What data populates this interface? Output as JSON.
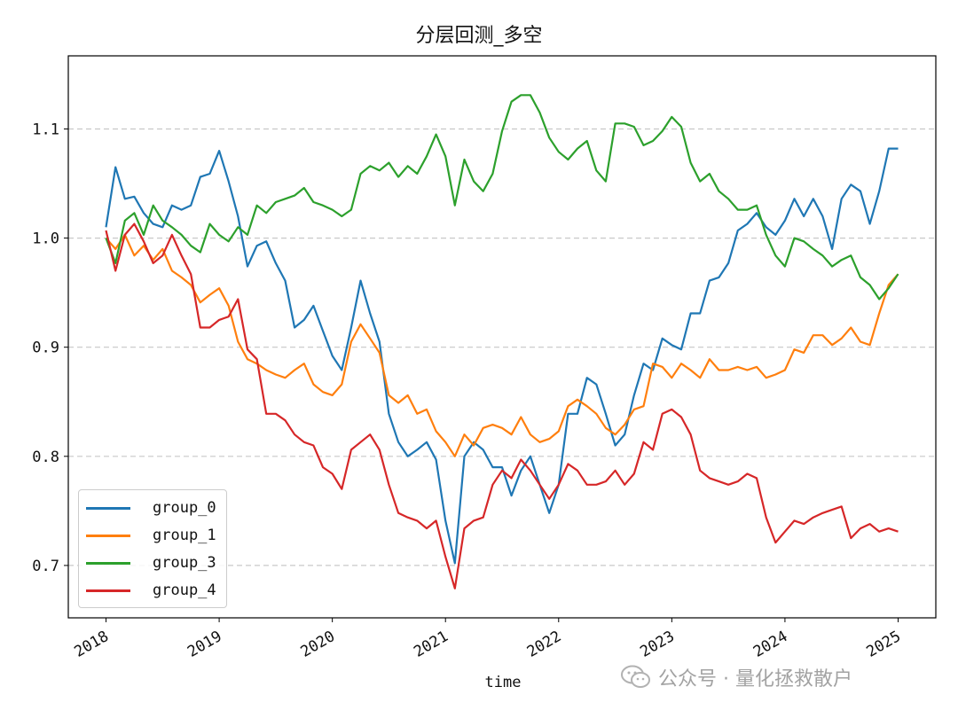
{
  "chart_data": {
    "type": "line",
    "title": "分层回测_多空",
    "xlabel": "time",
    "ylabel": "",
    "ylim": [
      0.652,
      1.167
    ],
    "xlim": [
      "2017-09",
      "2025-05"
    ],
    "grid": {
      "y": true,
      "x": false,
      "style": "dashed"
    },
    "legend_position": "lower-left",
    "y_ticks": [
      "0.7",
      "0.8",
      "0.9",
      "1.0",
      "1.1"
    ],
    "x_ticks": [
      "2018",
      "2019",
      "2020",
      "2021",
      "2022",
      "2023",
      "2024",
      "2025"
    ],
    "x": [
      "2018-01",
      "2018-02",
      "2018-03",
      "2018-04",
      "2018-05",
      "2018-06",
      "2018-07",
      "2018-08",
      "2018-09",
      "2018-10",
      "2018-11",
      "2018-12",
      "2019-01",
      "2019-02",
      "2019-03",
      "2019-04",
      "2019-05",
      "2019-06",
      "2019-07",
      "2019-08",
      "2019-09",
      "2019-10",
      "2019-11",
      "2019-12",
      "2020-01",
      "2020-02",
      "2020-03",
      "2020-04",
      "2020-05",
      "2020-06",
      "2020-07",
      "2020-08",
      "2020-09",
      "2020-10",
      "2020-11",
      "2020-12",
      "2021-01",
      "2021-02",
      "2021-03",
      "2021-04",
      "2021-05",
      "2021-06",
      "2021-07",
      "2021-08",
      "2021-09",
      "2021-10",
      "2021-11",
      "2021-12",
      "2022-01",
      "2022-02",
      "2022-03",
      "2022-04",
      "2022-05",
      "2022-06",
      "2022-07",
      "2022-08",
      "2022-09",
      "2022-10",
      "2022-11",
      "2022-12",
      "2023-01",
      "2023-02",
      "2023-03",
      "2023-04",
      "2023-05",
      "2023-06",
      "2023-07",
      "2023-08",
      "2023-09",
      "2023-10",
      "2023-11",
      "2023-12",
      "2024-01",
      "2024-02",
      "2024-03",
      "2024-04",
      "2024-05",
      "2024-06",
      "2024-07",
      "2024-08",
      "2024-09",
      "2024-10",
      "2024-11",
      "2024-12",
      "2025-01"
    ],
    "series": [
      {
        "name": "group_0",
        "color": "#1f77b4",
        "values": [
          1.01,
          1.065,
          1.036,
          1.038,
          1.023,
          1.013,
          1.01,
          1.03,
          1.026,
          1.03,
          1.056,
          1.059,
          1.08,
          1.052,
          1.02,
          0.974,
          0.993,
          0.997,
          0.977,
          0.961,
          0.918,
          0.925,
          0.938,
          0.915,
          0.892,
          0.879,
          0.918,
          0.961,
          0.931,
          0.905,
          0.839,
          0.813,
          0.8,
          0.806,
          0.813,
          0.797,
          0.741,
          0.702,
          0.8,
          0.813,
          0.806,
          0.79,
          0.79,
          0.764,
          0.787,
          0.8,
          0.774,
          0.748,
          0.774,
          0.839,
          0.839,
          0.872,
          0.866,
          0.839,
          0.81,
          0.82,
          0.856,
          0.885,
          0.879,
          0.908,
          0.902,
          0.898,
          0.931,
          0.931,
          0.961,
          0.964,
          0.977,
          1.007,
          1.013,
          1.023,
          1.01,
          1.003,
          1.016,
          1.036,
          1.02,
          1.036,
          1.02,
          0.99,
          1.036,
          1.049,
          1.043,
          1.013,
          1.043,
          1.082,
          1.082
        ]
      },
      {
        "name": "group_1",
        "color": "#ff7f0e",
        "values": [
          1.0,
          0.99,
          1.003,
          0.984,
          0.993,
          0.98,
          0.99,
          0.97,
          0.964,
          0.957,
          0.941,
          0.948,
          0.954,
          0.938,
          0.905,
          0.889,
          0.885,
          0.879,
          0.875,
          0.872,
          0.879,
          0.885,
          0.866,
          0.859,
          0.856,
          0.866,
          0.905,
          0.921,
          0.908,
          0.895,
          0.856,
          0.849,
          0.856,
          0.839,
          0.843,
          0.823,
          0.813,
          0.8,
          0.82,
          0.81,
          0.826,
          0.829,
          0.826,
          0.82,
          0.836,
          0.82,
          0.813,
          0.816,
          0.823,
          0.846,
          0.852,
          0.846,
          0.839,
          0.826,
          0.82,
          0.829,
          0.843,
          0.846,
          0.885,
          0.882,
          0.872,
          0.885,
          0.879,
          0.872,
          0.889,
          0.879,
          0.879,
          0.882,
          0.879,
          0.882,
          0.872,
          0.875,
          0.879,
          0.898,
          0.895,
          0.911,
          0.911,
          0.902,
          0.908,
          0.918,
          0.905,
          0.902,
          0.931,
          0.957,
          0.967
        ]
      },
      {
        "name": "group_3",
        "color": "#2ca02c",
        "values": [
          1.0,
          0.977,
          1.016,
          1.023,
          1.003,
          1.03,
          1.016,
          1.01,
          1.003,
          0.993,
          0.987,
          1.013,
          1.003,
          0.997,
          1.01,
          1.003,
          1.03,
          1.023,
          1.033,
          1.036,
          1.039,
          1.046,
          1.033,
          1.03,
          1.026,
          1.02,
          1.026,
          1.059,
          1.066,
          1.062,
          1.069,
          1.056,
          1.066,
          1.059,
          1.075,
          1.095,
          1.075,
          1.03,
          1.072,
          1.052,
          1.043,
          1.059,
          1.098,
          1.125,
          1.131,
          1.131,
          1.115,
          1.092,
          1.079,
          1.072,
          1.082,
          1.089,
          1.062,
          1.052,
          1.105,
          1.105,
          1.102,
          1.085,
          1.089,
          1.098,
          1.111,
          1.102,
          1.069,
          1.052,
          1.059,
          1.043,
          1.036,
          1.026,
          1.026,
          1.03,
          1.003,
          0.984,
          0.974,
          1.0,
          0.997,
          0.99,
          0.984,
          0.974,
          0.98,
          0.984,
          0.964,
          0.957,
          0.944,
          0.954,
          0.967
        ]
      },
      {
        "name": "group_4",
        "color": "#d62728",
        "values": [
          1.007,
          0.97,
          1.003,
          1.013,
          0.997,
          0.977,
          0.984,
          1.003,
          0.984,
          0.967,
          0.918,
          0.918,
          0.925,
          0.928,
          0.944,
          0.898,
          0.889,
          0.839,
          0.839,
          0.833,
          0.82,
          0.813,
          0.81,
          0.79,
          0.784,
          0.77,
          0.806,
          0.813,
          0.82,
          0.806,
          0.774,
          0.748,
          0.744,
          0.741,
          0.734,
          0.741,
          0.708,
          0.679,
          0.734,
          0.741,
          0.744,
          0.774,
          0.787,
          0.78,
          0.797,
          0.787,
          0.774,
          0.761,
          0.774,
          0.793,
          0.787,
          0.774,
          0.774,
          0.777,
          0.787,
          0.774,
          0.784,
          0.813,
          0.806,
          0.839,
          0.843,
          0.836,
          0.82,
          0.787,
          0.78,
          0.777,
          0.774,
          0.777,
          0.784,
          0.78,
          0.744,
          0.721,
          0.731,
          0.741,
          0.738,
          0.744,
          0.748,
          0.751,
          0.754,
          0.725,
          0.734,
          0.738,
          0.731,
          0.734,
          0.731
        ]
      }
    ]
  },
  "watermark": {
    "text": "公众号 · 量化拯救散户",
    "icon": "wechat-icon"
  }
}
